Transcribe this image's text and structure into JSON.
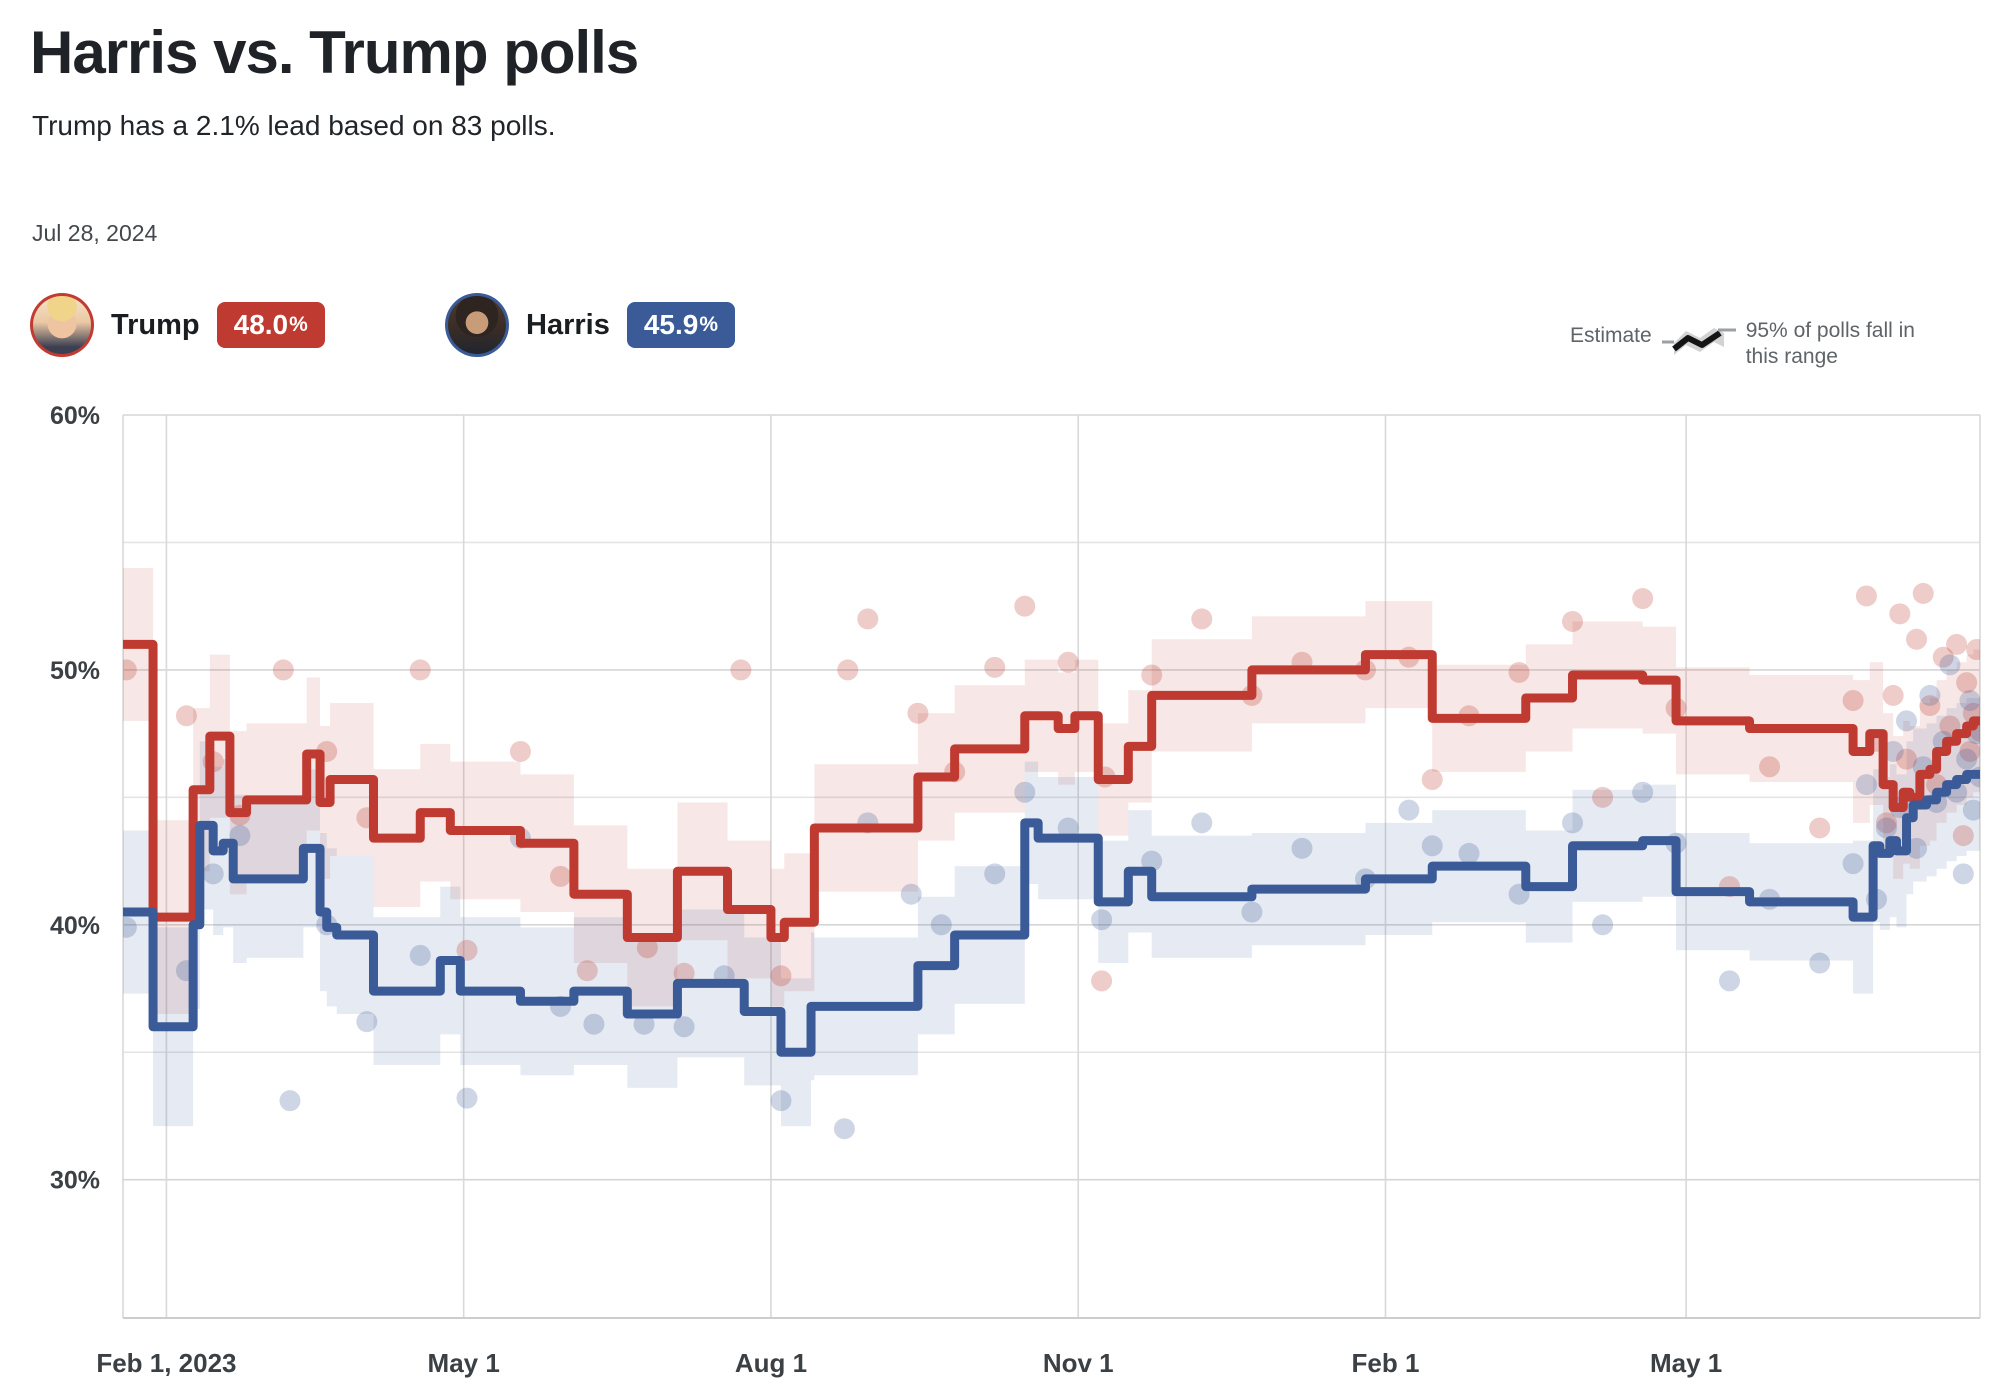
{
  "header": {
    "title": "Harris vs. Trump polls",
    "subtitle": "Trump has a 2.1% lead based on 83 polls.",
    "date": "Jul 28, 2024"
  },
  "legend": {
    "trump": {
      "name": "Trump",
      "value_number": "48.0",
      "value_suffix": "%",
      "color": "#bf3a31"
    },
    "harris": {
      "name": "Harris",
      "value_number": "45.9",
      "value_suffix": "%",
      "color": "#3a5b98"
    },
    "estimate": {
      "label": "Estimate",
      "range_label": "95% of polls fall in this range"
    }
  },
  "chart_data": {
    "type": "line",
    "title": "Harris vs. Trump polls",
    "subtitle": "Polling averages with 95% confidence bands and individual poll dots",
    "x_axis": {
      "unit": "days since Feb 1, 2023",
      "range_days": [
        -13,
        543
      ],
      "ticks": [
        {
          "label": "Feb 1, 2023",
          "day": 0
        },
        {
          "label": "May 1",
          "day": 89
        },
        {
          "label": "Aug 1",
          "day": 181
        },
        {
          "label": "Nov 1",
          "day": 273
        },
        {
          "label": "Feb 1",
          "day": 365
        },
        {
          "label": "May 1",
          "day": 455
        }
      ]
    },
    "y_axis": {
      "range": [
        24.6,
        60
      ],
      "gridline_values": [
        30,
        35,
        40,
        45,
        50,
        55,
        60
      ],
      "ticks": [
        {
          "label": "60%",
          "value": 60
        },
        {
          "label": "50%",
          "value": 50
        },
        {
          "label": "40%",
          "value": 40
        },
        {
          "label": "30%",
          "value": 30
        }
      ]
    },
    "series": [
      {
        "name": "Trump",
        "current_value": 48.0,
        "line_color": "#bf3a30",
        "band_fill": "rgba(191,58,48,0.12)",
        "dot_fill": "rgba(191,58,48,0.26)",
        "steps": [
          [
            -13,
            51.0
          ],
          [
            -4,
            40.3
          ],
          [
            8,
            45.3
          ],
          [
            13,
            47.4
          ],
          [
            19,
            44.4
          ],
          [
            24,
            44.9
          ],
          [
            42,
            46.7
          ],
          [
            46,
            44.8
          ],
          [
            49,
            45.7
          ],
          [
            62,
            43.4
          ],
          [
            76,
            44.4
          ],
          [
            85,
            43.7
          ],
          [
            106,
            43.2
          ],
          [
            122,
            41.2
          ],
          [
            138,
            39.5
          ],
          [
            153,
            42.1
          ],
          [
            168,
            40.6
          ],
          [
            181,
            39.5
          ],
          [
            185,
            40.1
          ],
          [
            194,
            43.8
          ],
          [
            225,
            45.8
          ],
          [
            236,
            46.9
          ],
          [
            257,
            48.2
          ],
          [
            267,
            47.7
          ],
          [
            272,
            48.2
          ],
          [
            279,
            45.7
          ],
          [
            288,
            47.0
          ],
          [
            295,
            49.0
          ],
          [
            325,
            50.0
          ],
          [
            359,
            50.6
          ],
          [
            379,
            48.1
          ],
          [
            407,
            48.9
          ],
          [
            421,
            49.8
          ],
          [
            442,
            49.6
          ],
          [
            452,
            48.0
          ],
          [
            474,
            47.7
          ],
          [
            505,
            46.8
          ],
          [
            510,
            47.5
          ],
          [
            514,
            45.5
          ],
          [
            517,
            44.6
          ],
          [
            520,
            45.2
          ],
          [
            522,
            45.0
          ],
          [
            525,
            45.9
          ],
          [
            528,
            46.1
          ],
          [
            530,
            46.8
          ],
          [
            533,
            47.2
          ],
          [
            536,
            47.5
          ],
          [
            539,
            47.8
          ],
          [
            541,
            48.0
          ],
          [
            543,
            48.0
          ]
        ],
        "band_half_width": [
          [
            -13,
            3.0
          ],
          [
            -4,
            3.8
          ],
          [
            8,
            3.2
          ],
          [
            24,
            3.0
          ],
          [
            62,
            2.7
          ],
          [
            122,
            2.7
          ],
          [
            194,
            2.5
          ],
          [
            257,
            2.2
          ],
          [
            325,
            2.1
          ],
          [
            452,
            2.1
          ],
          [
            505,
            2.8
          ],
          [
            543,
            2.8
          ]
        ],
        "polls": [
          [
            -12,
            50.0
          ],
          [
            6,
            48.2
          ],
          [
            14,
            46.4
          ],
          [
            22,
            44.3
          ],
          [
            35,
            50.0
          ],
          [
            48,
            46.8
          ],
          [
            60,
            44.2
          ],
          [
            76,
            50.0
          ],
          [
            90,
            39.0
          ],
          [
            106,
            46.8
          ],
          [
            118,
            41.9
          ],
          [
            126,
            38.2
          ],
          [
            144,
            39.1
          ],
          [
            155,
            38.1
          ],
          [
            172,
            50.0
          ],
          [
            184,
            38.0
          ],
          [
            204,
            50.0
          ],
          [
            210,
            52.0
          ],
          [
            225,
            48.3
          ],
          [
            236,
            46.0
          ],
          [
            248,
            50.1
          ],
          [
            257,
            52.5
          ],
          [
            270,
            50.3
          ],
          [
            280,
            37.8
          ],
          [
            281,
            45.8
          ],
          [
            295,
            49.8
          ],
          [
            310,
            52.0
          ],
          [
            325,
            49.0
          ],
          [
            340,
            50.3
          ],
          [
            359,
            50.0
          ],
          [
            372,
            50.5
          ],
          [
            379,
            45.7
          ],
          [
            390,
            48.2
          ],
          [
            405,
            49.9
          ],
          [
            421,
            51.9
          ],
          [
            430,
            45.0
          ],
          [
            442,
            52.8
          ],
          [
            452,
            48.5
          ],
          [
            468,
            41.5
          ],
          [
            480,
            46.2
          ],
          [
            495,
            43.8
          ],
          [
            505,
            48.8
          ],
          [
            509,
            52.9
          ],
          [
            512,
            47.2
          ],
          [
            515,
            44.0
          ],
          [
            517,
            49.0
          ],
          [
            519,
            52.2
          ],
          [
            521,
            46.5
          ],
          [
            524,
            51.2
          ],
          [
            526,
            53.0
          ],
          [
            528,
            48.6
          ],
          [
            530,
            45.5
          ],
          [
            532,
            50.5
          ],
          [
            534,
            47.8
          ],
          [
            536,
            51.0
          ],
          [
            538,
            43.5
          ],
          [
            539,
            49.5
          ],
          [
            540,
            46.8
          ],
          [
            541,
            48.3
          ],
          [
            542,
            50.8
          ],
          [
            543,
            47.6
          ]
        ]
      },
      {
        "name": "Harris",
        "current_value": 45.9,
        "line_color": "#3a5b98",
        "band_fill": "rgba(58,91,152,0.13)",
        "dot_fill": "rgba(58,91,152,0.25)",
        "steps": [
          [
            -13,
            40.5
          ],
          [
            -4,
            36.0
          ],
          [
            8,
            40.0
          ],
          [
            10,
            43.9
          ],
          [
            14,
            42.9
          ],
          [
            17,
            43.2
          ],
          [
            20,
            41.8
          ],
          [
            41,
            43.0
          ],
          [
            46,
            40.5
          ],
          [
            48,
            39.9
          ],
          [
            51,
            39.6
          ],
          [
            62,
            37.4
          ],
          [
            82,
            38.6
          ],
          [
            88,
            37.4
          ],
          [
            106,
            37.0
          ],
          [
            122,
            37.4
          ],
          [
            138,
            36.5
          ],
          [
            153,
            37.7
          ],
          [
            173,
            36.6
          ],
          [
            184,
            35.0
          ],
          [
            193,
            36.8
          ],
          [
            225,
            38.4
          ],
          [
            236,
            39.6
          ],
          [
            257,
            44.0
          ],
          [
            261,
            43.4
          ],
          [
            279,
            40.9
          ],
          [
            288,
            42.1
          ],
          [
            295,
            41.1
          ],
          [
            325,
            41.4
          ],
          [
            359,
            41.8
          ],
          [
            379,
            42.3
          ],
          [
            407,
            41.5
          ],
          [
            421,
            43.1
          ],
          [
            442,
            43.3
          ],
          [
            452,
            41.3
          ],
          [
            474,
            40.9
          ],
          [
            505,
            40.3
          ],
          [
            511,
            43.1
          ],
          [
            513,
            42.8
          ],
          [
            516,
            43.3
          ],
          [
            518,
            42.9
          ],
          [
            521,
            44.2
          ],
          [
            523,
            44.7
          ],
          [
            527,
            44.9
          ],
          [
            530,
            45.2
          ],
          [
            533,
            45.5
          ],
          [
            536,
            45.7
          ],
          [
            539,
            45.9
          ],
          [
            543,
            45.9
          ]
        ],
        "band_half_width": [
          [
            -13,
            3.2
          ],
          [
            -4,
            3.9
          ],
          [
            8,
            3.3
          ],
          [
            24,
            3.1
          ],
          [
            62,
            2.9
          ],
          [
            122,
            2.9
          ],
          [
            194,
            2.7
          ],
          [
            257,
            2.4
          ],
          [
            325,
            2.2
          ],
          [
            452,
            2.3
          ],
          [
            505,
            3.0
          ],
          [
            543,
            3.0
          ]
        ],
        "polls": [
          [
            -12,
            39.9
          ],
          [
            6,
            38.2
          ],
          [
            14,
            42.0
          ],
          [
            22,
            43.5
          ],
          [
            37,
            33.1
          ],
          [
            48,
            40.0
          ],
          [
            60,
            36.2
          ],
          [
            76,
            38.8
          ],
          [
            90,
            33.2
          ],
          [
            106,
            43.4
          ],
          [
            118,
            36.8
          ],
          [
            128,
            36.1
          ],
          [
            143,
            36.1
          ],
          [
            155,
            36.0
          ],
          [
            167,
            38.0
          ],
          [
            184,
            33.1
          ],
          [
            203,
            32.0
          ],
          [
            210,
            44.0
          ],
          [
            223,
            41.2
          ],
          [
            232,
            40.0
          ],
          [
            248,
            42.0
          ],
          [
            257,
            45.2
          ],
          [
            270,
            43.8
          ],
          [
            280,
            40.2
          ],
          [
            295,
            42.5
          ],
          [
            310,
            44.0
          ],
          [
            325,
            40.5
          ],
          [
            340,
            43.0
          ],
          [
            359,
            41.8
          ],
          [
            372,
            44.5
          ],
          [
            379,
            43.1
          ],
          [
            390,
            42.8
          ],
          [
            405,
            41.2
          ],
          [
            421,
            44.0
          ],
          [
            430,
            40.0
          ],
          [
            442,
            45.2
          ],
          [
            452,
            43.2
          ],
          [
            468,
            37.8
          ],
          [
            480,
            41.0
          ],
          [
            495,
            38.5
          ],
          [
            505,
            42.4
          ],
          [
            509,
            45.5
          ],
          [
            512,
            41.0
          ],
          [
            515,
            43.8
          ],
          [
            517,
            46.8
          ],
          [
            519,
            44.6
          ],
          [
            521,
            48.0
          ],
          [
            524,
            43.0
          ],
          [
            526,
            46.2
          ],
          [
            528,
            49.0
          ],
          [
            530,
            44.8
          ],
          [
            532,
            47.2
          ],
          [
            534,
            50.2
          ],
          [
            536,
            45.2
          ],
          [
            538,
            42.0
          ],
          [
            539,
            46.5
          ],
          [
            540,
            48.8
          ],
          [
            541,
            44.5
          ],
          [
            542,
            47.5
          ],
          [
            543,
            45.8
          ]
        ]
      }
    ],
    "legend_position": "top",
    "grid": true
  }
}
